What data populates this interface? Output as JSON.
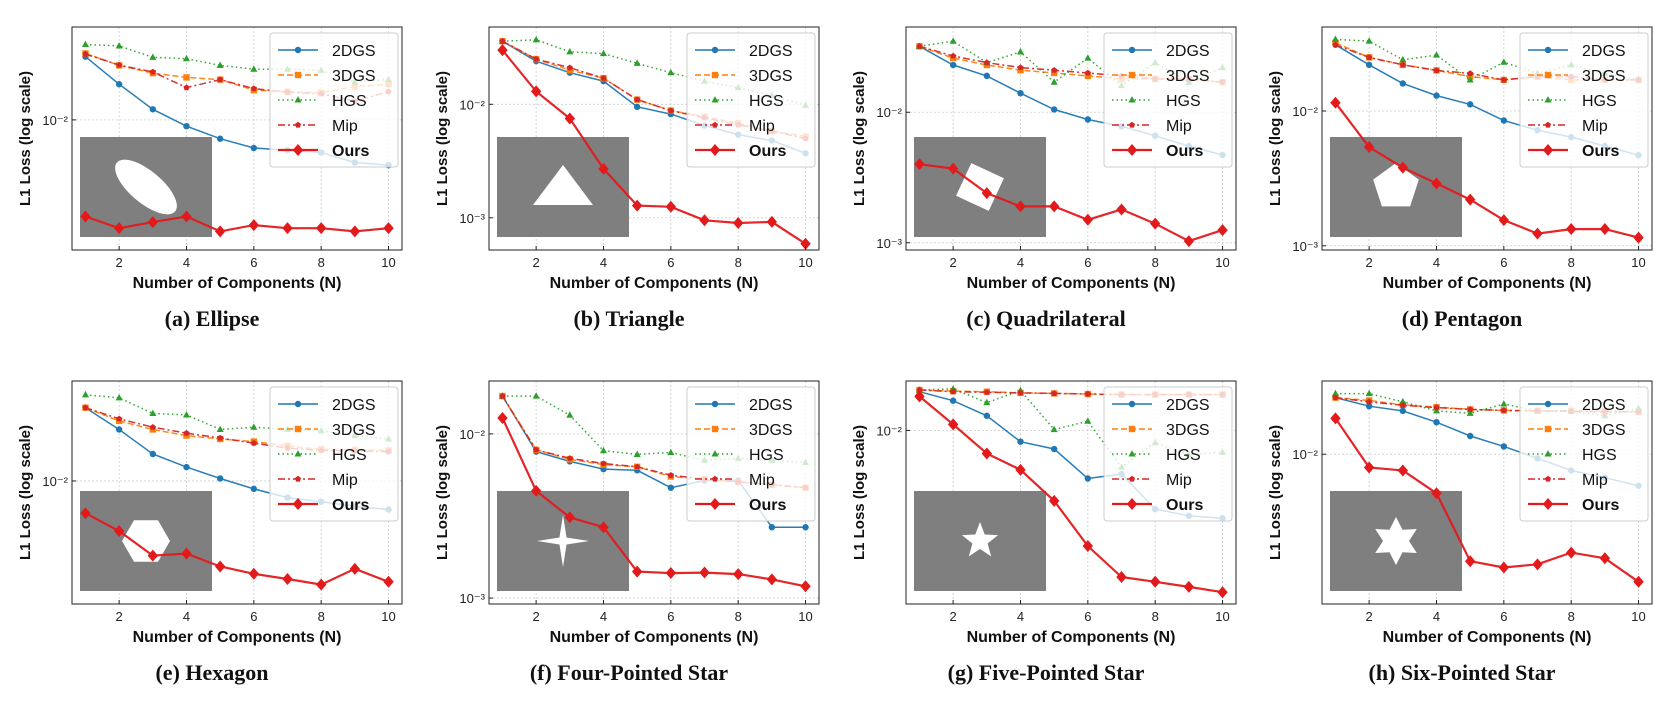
{
  "figure": {
    "legend_labels": [
      "2DGS",
      "3DGS",
      "HGS",
      "Mip",
      "Ours"
    ]
  },
  "chart_data": [
    {
      "type": "line",
      "shape": "ellipse",
      "caption": "(a) Ellipse",
      "xlabel": "Number of Components (N)",
      "ylabel": "L1 Loss (log scale)",
      "scale_y": "log",
      "xlim": [
        0.6,
        10.4
      ],
      "ylim": [
        0.0018,
        0.034
      ],
      "x": [
        1,
        2,
        3,
        4,
        5,
        6,
        7,
        8,
        9,
        10
      ],
      "xticks": [
        2,
        4,
        6,
        8,
        10
      ],
      "yticks": [
        {
          "value": 0.01,
          "label": "10⁻²"
        }
      ],
      "grid": true,
      "legend": "top-right",
      "series": [
        {
          "name": "2DGS",
          "values": [
            0.023,
            0.016,
            0.0115,
            0.0092,
            0.0078,
            0.0069,
            0.0067,
            0.0065,
            0.0057,
            0.0055
          ]
        },
        {
          "name": "3DGS",
          "values": [
            0.024,
            0.0205,
            0.0185,
            0.0175,
            0.017,
            0.0148,
            0.0145,
            0.0143,
            0.0155,
            0.016
          ]
        },
        {
          "name": "HGS",
          "values": [
            0.027,
            0.0265,
            0.0228,
            0.0224,
            0.0205,
            0.0195,
            0.0195,
            0.0192,
            0.0165,
            0.017
          ]
        },
        {
          "name": "Mip",
          "values": [
            0.0238,
            0.0206,
            0.0188,
            0.0153,
            0.017,
            0.0151,
            0.0144,
            0.0141,
            0.0128,
            0.0145
          ]
        },
        {
          "name": "Ours",
          "values": [
            0.0028,
            0.0024,
            0.0026,
            0.0028,
            0.0023,
            0.0025,
            0.0024,
            0.0024,
            0.0023,
            0.0024
          ]
        }
      ]
    },
    {
      "type": "line",
      "shape": "triangle",
      "caption": "(b) Triangle",
      "xlabel": "Number of Components (N)",
      "ylabel": "L1 Loss (log scale)",
      "scale_y": "log",
      "xlim": [
        0.6,
        10.4
      ],
      "ylim": [
        0.00052,
        0.048
      ],
      "x": [
        1,
        2,
        3,
        4,
        5,
        6,
        7,
        8,
        9,
        10
      ],
      "xticks": [
        2,
        4,
        6,
        8,
        10
      ],
      "yticks": [
        {
          "value": 0.01,
          "label": "10⁻²"
        },
        {
          "value": 0.001,
          "label": "10⁻³"
        }
      ],
      "grid": true,
      "legend": "top-right",
      "series": [
        {
          "name": "2DGS",
          "values": [
            0.036,
            0.024,
            0.019,
            0.016,
            0.0095,
            0.0082,
            0.0065,
            0.0054,
            0.0048,
            0.0037
          ]
        },
        {
          "name": "3DGS",
          "values": [
            0.036,
            0.025,
            0.02,
            0.017,
            0.011,
            0.0088,
            0.0078,
            0.0068,
            0.0058,
            0.0052
          ]
        },
        {
          "name": "HGS",
          "values": [
            0.036,
            0.037,
            0.029,
            0.028,
            0.023,
            0.019,
            0.016,
            0.014,
            0.012,
            0.0098
          ]
        },
        {
          "name": "Mip",
          "values": [
            0.036,
            0.025,
            0.021,
            0.017,
            0.011,
            0.0088,
            0.0076,
            0.0066,
            0.0058,
            0.005
          ]
        },
        {
          "name": "Ours",
          "values": [
            0.03,
            0.013,
            0.0075,
            0.0027,
            0.00128,
            0.00125,
            0.00095,
            0.0009,
            0.00092,
            0.00059
          ]
        }
      ]
    },
    {
      "type": "line",
      "shape": "quadrilateral",
      "caption": "(c) Quadrilateral",
      "xlabel": "Number of Components (N)",
      "ylabel": "L1 Loss (log scale)",
      "scale_y": "log",
      "xlim": [
        0.6,
        10.4
      ],
      "ylim": [
        0.00088,
        0.045
      ],
      "x": [
        1,
        2,
        3,
        4,
        5,
        6,
        7,
        8,
        9,
        10
      ],
      "xticks": [
        2,
        4,
        6,
        8,
        10
      ],
      "yticks": [
        {
          "value": 0.01,
          "label": "10⁻²"
        },
        {
          "value": 0.001,
          "label": "10⁻³"
        }
      ],
      "grid": true,
      "legend": "top-right",
      "series": [
        {
          "name": "2DGS",
          "values": [
            0.032,
            0.023,
            0.019,
            0.014,
            0.0105,
            0.0088,
            0.0078,
            0.0066,
            0.0055,
            0.0047
          ]
        },
        {
          "name": "3DGS",
          "values": [
            0.032,
            0.026,
            0.023,
            0.021,
            0.02,
            0.019,
            0.018,
            0.018,
            0.018,
            0.017
          ]
        },
        {
          "name": "HGS",
          "values": [
            0.032,
            0.035,
            0.024,
            0.029,
            0.017,
            0.026,
            0.016,
            0.024,
            0.017,
            0.022
          ]
        },
        {
          "name": "Mip",
          "values": [
            0.032,
            0.027,
            0.024,
            0.022,
            0.021,
            0.02,
            0.019,
            0.018,
            0.018,
            0.017
          ]
        },
        {
          "name": "Ours",
          "values": [
            0.004,
            0.0037,
            0.0024,
            0.0019,
            0.0019,
            0.0015,
            0.0018,
            0.0014,
            0.00103,
            0.00125
          ]
        }
      ]
    },
    {
      "type": "line",
      "shape": "pentagon",
      "caption": "(d) Pentagon",
      "xlabel": "Number of Components (N)",
      "ylabel": "L1 Loss (log scale)",
      "scale_y": "log",
      "xlim": [
        0.6,
        10.4
      ],
      "ylim": [
        0.00093,
        0.042
      ],
      "x": [
        1,
        2,
        3,
        4,
        5,
        6,
        7,
        8,
        9,
        10
      ],
      "xticks": [
        2,
        4,
        6,
        8,
        10
      ],
      "yticks": [
        {
          "value": 0.01,
          "label": "10⁻²"
        },
        {
          "value": 0.001,
          "label": "10⁻³"
        }
      ],
      "grid": true,
      "legend": "top-right",
      "series": [
        {
          "name": "2DGS",
          "values": [
            0.031,
            0.022,
            0.016,
            0.013,
            0.0112,
            0.0085,
            0.0072,
            0.0064,
            0.0055,
            0.0047
          ]
        },
        {
          "name": "3DGS",
          "values": [
            0.032,
            0.025,
            0.022,
            0.02,
            0.018,
            0.017,
            0.018,
            0.017,
            0.017,
            0.017
          ]
        },
        {
          "name": "HGS",
          "values": [
            0.034,
            0.033,
            0.024,
            0.026,
            0.017,
            0.023,
            0.019,
            0.022,
            0.019,
            0.017
          ]
        },
        {
          "name": "Mip",
          "values": [
            0.031,
            0.025,
            0.022,
            0.02,
            0.019,
            0.017,
            0.018,
            0.018,
            0.017,
            0.017
          ]
        },
        {
          "name": "Ours",
          "values": [
            0.0115,
            0.0054,
            0.0038,
            0.0029,
            0.0022,
            0.00155,
            0.00123,
            0.00133,
            0.00133,
            0.00115
          ]
        }
      ]
    },
    {
      "type": "line",
      "shape": "hexagon",
      "caption": "(e) Hexagon",
      "xlabel": "Number of Components (N)",
      "ylabel": "L1 Loss (log scale)",
      "scale_y": "log",
      "xlim": [
        0.6,
        10.4
      ],
      "ylim": [
        0.0023,
        0.033
      ],
      "x": [
        1,
        2,
        3,
        4,
        5,
        6,
        7,
        8,
        9,
        10
      ],
      "xticks": [
        2,
        4,
        6,
        8,
        10
      ],
      "yticks": [
        {
          "value": 0.01,
          "label": "10⁻²"
        }
      ],
      "grid": true,
      "legend": "top-right",
      "series": [
        {
          "name": "2DGS",
          "values": [
            0.024,
            0.0185,
            0.0138,
            0.0118,
            0.0103,
            0.0091,
            0.0082,
            0.0078,
            0.0074,
            0.0071
          ]
        },
        {
          "name": "3DGS",
          "values": [
            0.024,
            0.0205,
            0.0185,
            0.0172,
            0.0165,
            0.016,
            0.0152,
            0.0146,
            0.0145,
            0.0144
          ]
        },
        {
          "name": "HGS",
          "values": [
            0.028,
            0.027,
            0.0224,
            0.022,
            0.0185,
            0.019,
            0.0185,
            0.0182,
            0.0172,
            0.0165
          ]
        },
        {
          "name": "Mip",
          "values": [
            0.024,
            0.021,
            0.019,
            0.0177,
            0.0167,
            0.0157,
            0.0148,
            0.0144,
            0.0143,
            0.0142
          ]
        },
        {
          "name": "Ours",
          "values": [
            0.0068,
            0.0055,
            0.0041,
            0.0042,
            0.0036,
            0.0033,
            0.0031,
            0.0029,
            0.0035,
            0.003
          ]
        }
      ]
    },
    {
      "type": "line",
      "shape": "four-pointed-star",
      "caption": "(f) Four-Pointed Star",
      "xlabel": "Number of Components (N)",
      "ylabel": "L1 Loss (log scale)",
      "scale_y": "log",
      "xlim": [
        0.6,
        10.4
      ],
      "ylim": [
        0.00092,
        0.021
      ],
      "x": [
        1,
        2,
        3,
        4,
        5,
        6,
        7,
        8,
        9,
        10
      ],
      "xticks": [
        2,
        4,
        6,
        8,
        10
      ],
      "yticks": [
        {
          "value": 0.01,
          "label": "10⁻²"
        },
        {
          "value": 0.001,
          "label": "10⁻³"
        }
      ],
      "grid": true,
      "legend": "top-right",
      "series": [
        {
          "name": "2DGS",
          "values": [
            0.017,
            0.0078,
            0.0068,
            0.0061,
            0.006,
            0.0047,
            0.0052,
            0.0052,
            0.0027,
            0.0027
          ]
        },
        {
          "name": "3DGS",
          "values": [
            0.017,
            0.008,
            0.007,
            0.0065,
            0.0063,
            0.0055,
            0.0053,
            0.0051,
            0.0049,
            0.0047
          ]
        },
        {
          "name": "HGS",
          "values": [
            0.017,
            0.017,
            0.013,
            0.0079,
            0.0075,
            0.0077,
            0.0069,
            0.0071,
            0.0069,
            0.0067
          ]
        },
        {
          "name": "Mip",
          "values": [
            0.017,
            0.008,
            0.0071,
            0.0066,
            0.0063,
            0.0056,
            0.0053,
            0.0051,
            0.0049,
            0.0047
          ]
        },
        {
          "name": "Ours",
          "values": [
            0.0125,
            0.0045,
            0.0031,
            0.0027,
            0.00145,
            0.00142,
            0.00143,
            0.0014,
            0.0013,
            0.00118
          ]
        }
      ]
    },
    {
      "type": "line",
      "shape": "five-pointed-star",
      "caption": "(g) Five-Pointed Star",
      "xlabel": "Number of Components (N)",
      "ylabel": "L1 Loss (log scale)",
      "scale_y": "log",
      "xlim": [
        0.6,
        10.4
      ],
      "ylim": [
        0.0014,
        0.0175
      ],
      "x": [
        1,
        2,
        3,
        4,
        5,
        6,
        7,
        8,
        9,
        10
      ],
      "xticks": [
        2,
        4,
        6,
        8,
        10
      ],
      "yticks": [
        {
          "value": 0.01,
          "label": "10⁻²"
        }
      ],
      "grid": true,
      "legend": "top-right",
      "series": [
        {
          "name": "2DGS",
          "values": [
            0.0155,
            0.014,
            0.0118,
            0.0088,
            0.0081,
            0.0058,
            0.0061,
            0.0041,
            0.0038,
            0.0037
          ]
        },
        {
          "name": "3DGS",
          "values": [
            0.0158,
            0.0156,
            0.0155,
            0.0153,
            0.0152,
            0.0151,
            0.015,
            0.015,
            0.015,
            0.015
          ]
        },
        {
          "name": "HGS",
          "values": [
            0.0158,
            0.016,
            0.0137,
            0.0157,
            0.0101,
            0.0111,
            0.0066,
            0.0087,
            0.0076,
            0.0078
          ]
        },
        {
          "name": "Mip",
          "values": [
            0.0158,
            0.0155,
            0.0154,
            0.0153,
            0.0152,
            0.0151,
            0.015,
            0.015,
            0.015,
            0.015
          ]
        },
        {
          "name": "Ours",
          "values": [
            0.0147,
            0.0107,
            0.0077,
            0.0064,
            0.0045,
            0.0027,
            0.0019,
            0.0018,
            0.0017,
            0.0016
          ]
        }
      ]
    },
    {
      "type": "line",
      "shape": "six-pointed-star",
      "caption": "(h) Six-Pointed Star",
      "xlabel": "Number of Components (N)",
      "ylabel": "L1 Loss (log scale)",
      "scale_y": "log",
      "xlim": [
        0.6,
        10.4
      ],
      "ylim": [
        0.0016,
        0.0245
      ],
      "x": [
        1,
        2,
        3,
        4,
        5,
        6,
        7,
        8,
        9,
        10
      ],
      "xticks": [
        2,
        4,
        6,
        8,
        10
      ],
      "yticks": [
        {
          "value": 0.01,
          "label": "10⁻²"
        }
      ],
      "grid": true,
      "legend": "top-right",
      "series": [
        {
          "name": "2DGS",
          "values": [
            0.02,
            0.018,
            0.017,
            0.0148,
            0.0125,
            0.011,
            0.0095,
            0.0082,
            0.0075,
            0.0068
          ]
        },
        {
          "name": "3DGS",
          "values": [
            0.02,
            0.0193,
            0.0183,
            0.0178,
            0.0173,
            0.0171,
            0.017,
            0.017,
            0.0169,
            0.0168
          ]
        },
        {
          "name": "HGS",
          "values": [
            0.021,
            0.021,
            0.019,
            0.017,
            0.0165,
            0.0185,
            0.017,
            0.017,
            0.016,
            0.0175
          ]
        },
        {
          "name": "Mip",
          "values": [
            0.02,
            0.019,
            0.0182,
            0.0177,
            0.0173,
            0.0171,
            0.017,
            0.0169,
            0.0168,
            0.0168
          ]
        },
        {
          "name": "Ours",
          "values": [
            0.0155,
            0.0085,
            0.0082,
            0.0062,
            0.0027,
            0.0025,
            0.0026,
            0.003,
            0.0028,
            0.0021
          ]
        }
      ]
    }
  ]
}
